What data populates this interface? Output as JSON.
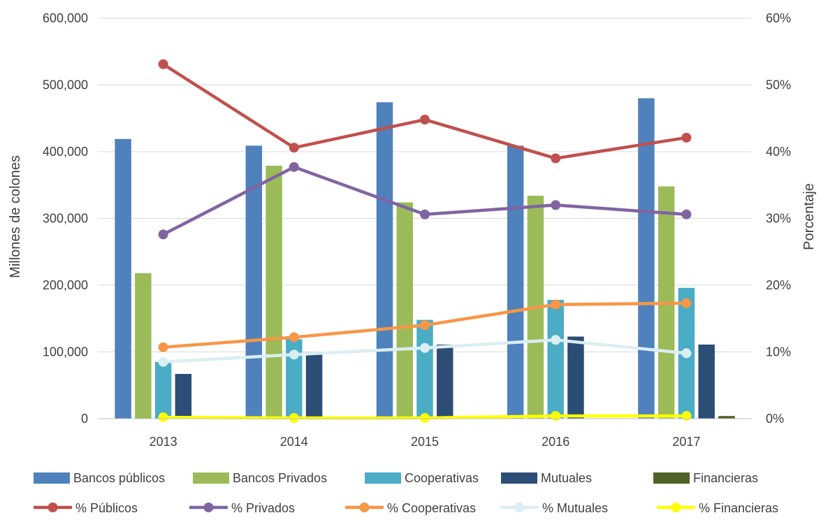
{
  "chart_data": {
    "type": "bar",
    "categories": [
      "2013",
      "2014",
      "2015",
      "2016",
      "2017"
    ],
    "ylabel": "Millones de colones",
    "y2label": "Porcentaje",
    "ylim": [
      0,
      600000
    ],
    "y2lim": [
      0,
      0.6
    ],
    "yticks": [
      "0",
      "100,000",
      "200,000",
      "300,000",
      "400,000",
      "500,000",
      "600,000"
    ],
    "y2ticks": [
      "0%",
      "10%",
      "20%",
      "30%",
      "40%",
      "50%",
      "60%"
    ],
    "grid": true,
    "legend_position": "bottom",
    "bar_series": [
      {
        "name": "Bancos públicos",
        "color": "#4F81BD",
        "values": [
          419000,
          409000,
          474000,
          409000,
          480000
        ]
      },
      {
        "name": "Bancos Privados",
        "color": "#9BBB59",
        "values": [
          218000,
          379000,
          324000,
          334000,
          348000
        ]
      },
      {
        "name": "Cooperativas",
        "color": "#4BACC6",
        "values": [
          85000,
          119000,
          148000,
          178000,
          196000
        ]
      },
      {
        "name": "Mutuales",
        "color": "#2C4D75",
        "values": [
          67000,
          96000,
          111000,
          123000,
          111000
        ]
      },
      {
        "name": "Financieras",
        "color": "#4F6228",
        "values": [
          0,
          0,
          0,
          0,
          4000
        ]
      }
    ],
    "line_series": [
      {
        "name": "% Públicos",
        "color": "#C0504D",
        "values": [
          0.531,
          0.406,
          0.448,
          0.39,
          0.421
        ]
      },
      {
        "name": "% Privados",
        "color": "#8064A2",
        "values": [
          0.276,
          0.377,
          0.306,
          0.32,
          0.306
        ]
      },
      {
        "name": "% Cooperativas",
        "color": "#F79646",
        "values": [
          0.107,
          0.122,
          0.14,
          0.171,
          0.173
        ]
      },
      {
        "name": "% Mutuales",
        "color": "#DAEEF3",
        "values": [
          0.085,
          0.096,
          0.106,
          0.118,
          0.098
        ]
      },
      {
        "name": "% Financieras",
        "color": "#FFFF00",
        "values": [
          0.002,
          0.001,
          0.001,
          0.004,
          0.004
        ]
      }
    ]
  }
}
